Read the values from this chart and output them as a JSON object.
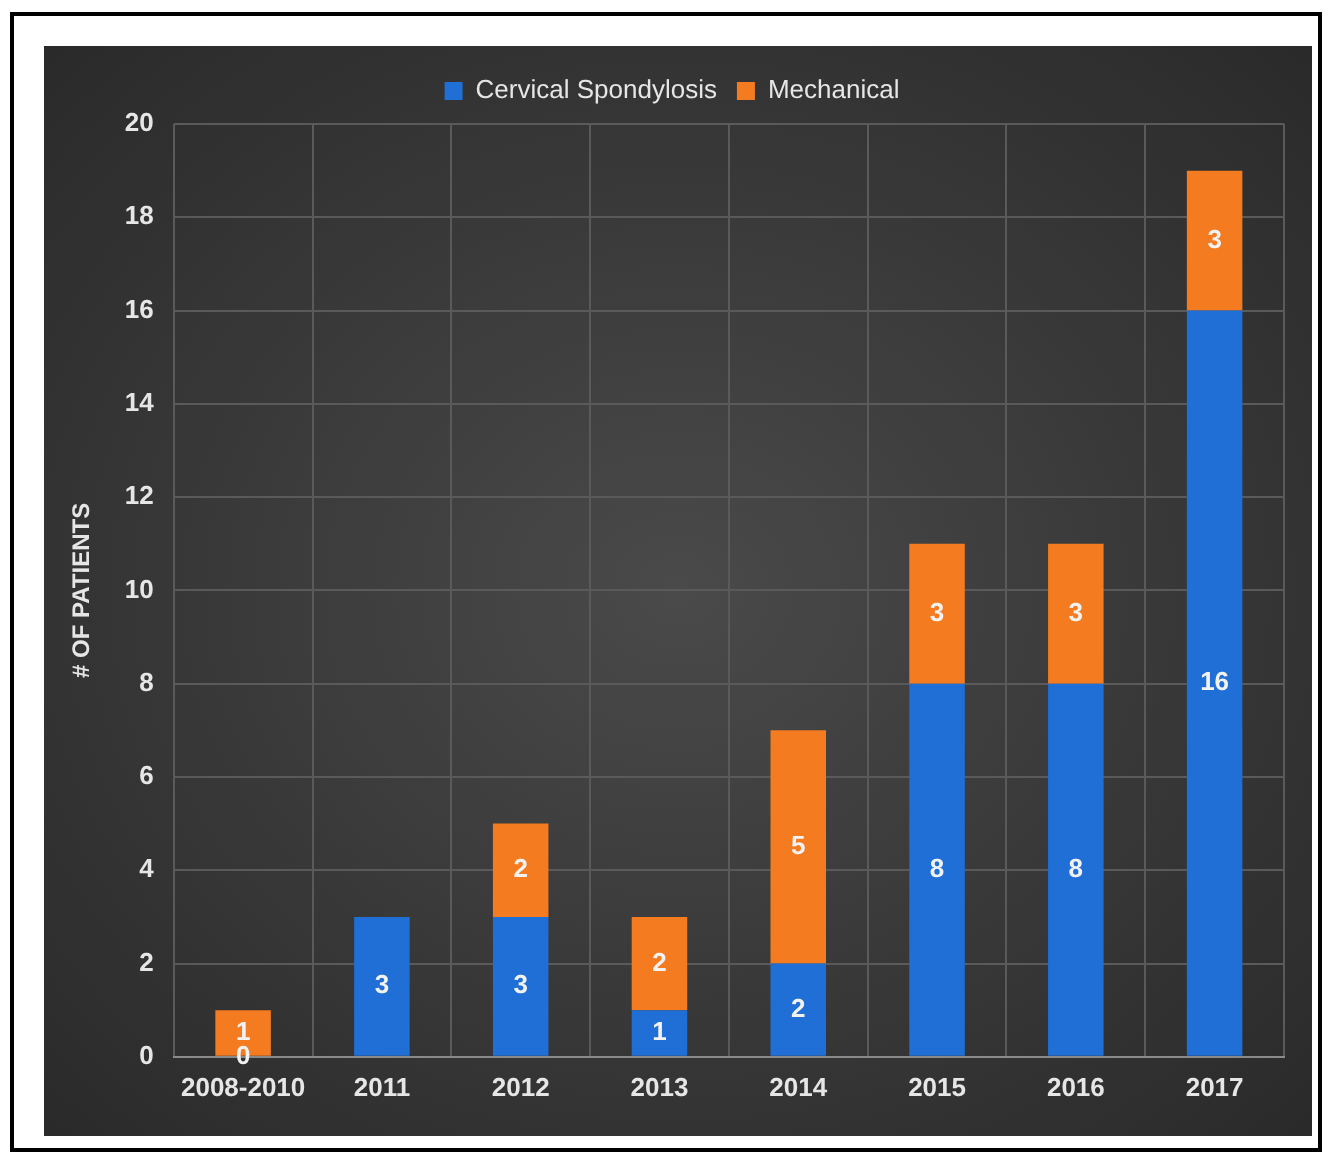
{
  "chart_data": {
    "type": "bar",
    "ylabel": "# OF PATIENTS",
    "categories": [
      "2008-2010",
      "2011",
      "2012",
      "2013",
      "2014",
      "2015",
      "2016",
      "2017"
    ],
    "series": [
      {
        "name": "Cervical Spondylosis",
        "color": "#1f6fd6",
        "values": [
          0,
          3,
          3,
          1,
          2,
          8,
          8,
          16
        ],
        "value_labels": [
          "0",
          "3",
          "3",
          "1",
          "2",
          "8",
          "8",
          "16"
        ]
      },
      {
        "name": "Mechanical",
        "color": "#f47b20",
        "values": [
          1,
          0,
          2,
          2,
          5,
          3,
          3,
          3
        ],
        "value_labels": [
          "1",
          null,
          "2",
          "2",
          "5",
          "3",
          "3",
          "3"
        ]
      }
    ],
    "stacked": true,
    "ylim": [
      0,
      20
    ],
    "yticks": [
      0,
      2,
      4,
      6,
      8,
      10,
      12,
      14,
      16,
      18,
      20
    ],
    "grid": true,
    "legend": "top"
  }
}
